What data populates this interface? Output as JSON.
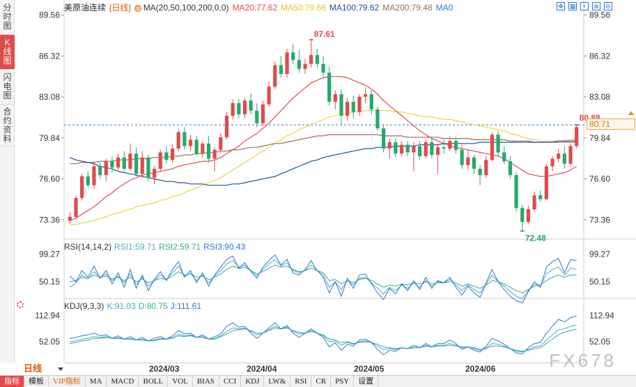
{
  "left_tabs": [
    {
      "label": "分时图",
      "chars": [
        "分",
        "时",
        "图"
      ],
      "active": false
    },
    {
      "label": "K线图",
      "chars": [
        "K",
        "线",
        "图"
      ],
      "active": true
    },
    {
      "label": "闪电图",
      "chars": [
        "闪",
        "电",
        "图"
      ],
      "active": false
    },
    {
      "label": "合约资料",
      "chars": [
        "合",
        "约",
        "资",
        "料"
      ],
      "active": false
    }
  ],
  "legend": {
    "title": "美原油连续",
    "period": "[日线]",
    "settings_icon": "settings-icon",
    "ma_params": "MA(20,50,100,200,0,0)",
    "ma20": "MA20:77.62",
    "ma50": "MA50:79.66",
    "ma100": "MA100:79.62",
    "ma200": "MA200:79.48",
    "ma0": "MA0"
  },
  "colors": {
    "up": "#e24a4a",
    "down": "#26a96c",
    "ma20": "#e24a4a",
    "ma50": "#f0d040",
    "ma100": "#1f4e9c",
    "ma200": "#a06a55",
    "ref_line": "#2a7ad1",
    "rsi1": "#4aa8c8",
    "rsi2": "#3aa890",
    "rsi3": "#2a7ad1",
    "k": "#4aa8c8",
    "d": "#3aa890",
    "j": "#2a7ad1"
  },
  "toolbar_icons": [
    "expand-icon",
    "grid-icon",
    "crosshair-icon",
    "zoom-in-icon",
    "zoom-out-icon"
  ],
  "price_axis": [
    "89.56",
    "86.32",
    "83.08",
    "79.84",
    "76.60",
    "73.36"
  ],
  "current_price_tag": "80.71",
  "annotations": {
    "high": "87.61",
    "low": "72.48",
    "last": "80.88"
  },
  "rsi": {
    "params": "RSI(14,14,2)",
    "rsi1": "RSI1:59.71",
    "rsi2": "RSI2:59.71",
    "rsi3": "RSI3:90.43",
    "axis": [
      "99.27",
      "50.15"
    ]
  },
  "kdj": {
    "params": "KDJ(9,3,3)",
    "k": "K:91.03",
    "d": "D:80.75",
    "j": "J:111.61",
    "axis": [
      "112.94",
      "52.05"
    ]
  },
  "period_selector": "日线",
  "date_axis": [
    "2024/03",
    "2024/04",
    "2024/05",
    "2024/06"
  ],
  "bottom_toolbar": [
    "指标",
    "模板",
    "VIP指标",
    "MA",
    "MACD",
    "BOLL",
    "VOL",
    "BIAS",
    "CCI",
    "KDJ",
    "LW&",
    "RSI",
    "CR",
    "PSY",
    "设置"
  ],
  "watermark": "FX678",
  "chart_data": {
    "type": "candlestick",
    "price_range": [
      72.0,
      90.2
    ],
    "candles_ohlc": [
      [
        73.3,
        74.0,
        73.1,
        73.6
      ],
      [
        73.6,
        75.3,
        73.5,
        75.1
      ],
      [
        75.1,
        77.0,
        74.9,
        76.8
      ],
      [
        76.8,
        77.2,
        75.9,
        76.1
      ],
      [
        76.1,
        78.0,
        75.8,
        77.6
      ],
      [
        77.6,
        77.9,
        76.6,
        76.9
      ],
      [
        76.9,
        78.2,
        76.4,
        78.0
      ],
      [
        78.0,
        78.4,
        77.1,
        77.5
      ],
      [
        77.5,
        78.6,
        77.3,
        78.3
      ],
      [
        78.3,
        78.8,
        77.2,
        77.4
      ],
      [
        77.4,
        79.4,
        77.2,
        78.6
      ],
      [
        78.6,
        79.1,
        76.8,
        77.0
      ],
      [
        77.0,
        78.8,
        76.7,
        78.3
      ],
      [
        78.3,
        78.5,
        76.4,
        76.7
      ],
      [
        76.7,
        77.6,
        76.2,
        77.4
      ],
      [
        77.4,
        78.9,
        77.2,
        78.7
      ],
      [
        78.7,
        79.2,
        77.8,
        78.1
      ],
      [
        78.1,
        79.3,
        77.9,
        79.0
      ],
      [
        79.0,
        80.5,
        78.8,
        80.3
      ],
      [
        80.3,
        80.7,
        78.9,
        79.2
      ],
      [
        79.2,
        80.1,
        78.8,
        79.7
      ],
      [
        79.7,
        80.0,
        78.4,
        78.6
      ],
      [
        78.6,
        79.6,
        78.3,
        79.4
      ],
      [
        79.4,
        80.0,
        77.9,
        78.2
      ],
      [
        78.2,
        79.1,
        77.2,
        78.9
      ],
      [
        78.9,
        80.2,
        78.6,
        79.9
      ],
      [
        79.9,
        81.9,
        79.7,
        81.6
      ],
      [
        81.6,
        82.9,
        81.3,
        82.6
      ],
      [
        82.6,
        82.9,
        81.4,
        81.7
      ],
      [
        81.7,
        83.0,
        81.4,
        82.8
      ],
      [
        82.8,
        83.4,
        81.7,
        82.0
      ],
      [
        82.0,
        82.6,
        80.7,
        81.0
      ],
      [
        81.0,
        82.8,
        80.8,
        82.5
      ],
      [
        82.5,
        84.3,
        82.3,
        83.9
      ],
      [
        83.9,
        85.9,
        83.7,
        85.6
      ],
      [
        85.6,
        86.3,
        84.6,
        84.9
      ],
      [
        84.9,
        86.9,
        84.6,
        86.6
      ],
      [
        86.6,
        87.3,
        85.7,
        86.0
      ],
      [
        86.0,
        86.8,
        85.0,
        85.3
      ],
      [
        85.3,
        86.1,
        84.9,
        85.7
      ],
      [
        85.7,
        87.6,
        85.4,
        86.4
      ],
      [
        86.4,
        86.9,
        85.4,
        85.7
      ],
      [
        85.7,
        86.3,
        84.7,
        85.0
      ],
      [
        85.0,
        85.5,
        82.4,
        82.7
      ],
      [
        82.7,
        83.6,
        82.1,
        83.3
      ],
      [
        83.3,
        83.7,
        80.9,
        81.6
      ],
      [
        81.6,
        83.0,
        81.2,
        82.7
      ],
      [
        82.7,
        83.2,
        81.4,
        81.9
      ],
      [
        81.9,
        83.3,
        81.6,
        83.1
      ],
      [
        83.1,
        83.8,
        82.6,
        83.3
      ],
      [
        83.3,
        83.6,
        81.7,
        82.1
      ],
      [
        82.1,
        82.3,
        80.4,
        80.6
      ],
      [
        80.6,
        80.9,
        78.7,
        79.0
      ],
      [
        79.0,
        79.8,
        78.2,
        79.5
      ],
      [
        79.5,
        79.8,
        78.3,
        78.6
      ],
      [
        78.6,
        79.6,
        78.4,
        79.3
      ],
      [
        79.3,
        79.6,
        78.4,
        78.7
      ],
      [
        78.7,
        79.5,
        77.2,
        79.2
      ],
      [
        79.2,
        79.6,
        78.1,
        78.4
      ],
      [
        78.4,
        79.7,
        78.2,
        79.5
      ],
      [
        79.5,
        79.8,
        78.2,
        78.5
      ],
      [
        78.5,
        79.4,
        77.0,
        79.1
      ],
      [
        79.1,
        79.7,
        78.6,
        79.0
      ],
      [
        79.0,
        80.0,
        78.8,
        79.6
      ],
      [
        79.6,
        79.9,
        78.6,
        78.9
      ],
      [
        78.9,
        79.3,
        77.4,
        77.7
      ],
      [
        77.7,
        78.9,
        77.3,
        78.3
      ],
      [
        78.3,
        78.5,
        77.0,
        77.4
      ],
      [
        77.4,
        77.7,
        76.1,
        76.9
      ],
      [
        76.9,
        78.4,
        76.7,
        78.1
      ],
      [
        78.1,
        80.3,
        78.0,
        80.1
      ],
      [
        80.1,
        80.4,
        78.4,
        78.7
      ],
      [
        78.7,
        79.2,
        77.8,
        78.0
      ],
      [
        78.0,
        78.4,
        76.6,
        76.9
      ],
      [
        76.9,
        77.1,
        74.0,
        74.3
      ],
      [
        74.3,
        74.6,
        72.5,
        73.2
      ],
      [
        73.2,
        74.5,
        73.0,
        74.2
      ],
      [
        74.2,
        75.6,
        74.0,
        75.3
      ],
      [
        75.3,
        75.7,
        74.8,
        75.0
      ],
      [
        75.0,
        77.8,
        74.9,
        77.6
      ],
      [
        77.6,
        78.4,
        77.2,
        78.2
      ],
      [
        78.2,
        79.0,
        77.9,
        78.6
      ],
      [
        78.6,
        79.2,
        77.4,
        77.8
      ],
      [
        77.8,
        79.4,
        77.6,
        79.2
      ],
      [
        79.2,
        80.9,
        79.0,
        80.7
      ]
    ],
    "ma20": [
      73.3,
      73.5,
      73.8,
      74.1,
      74.4,
      74.8,
      75.2,
      75.5,
      75.9,
      76.2,
      76.5,
      76.7,
      76.9,
      77.0,
      77.1,
      77.2,
      77.3,
      77.4,
      77.6,
      77.7,
      77.8,
      77.9,
      78.0,
      78.0,
      78.1,
      78.3,
      78.6,
      78.9,
      79.2,
      79.6,
      79.9,
      80.2,
      80.6,
      81.0,
      81.5,
      82.0,
      82.5,
      83.0,
      83.4,
      83.8,
      84.2,
      84.4,
      84.6,
      84.7,
      84.7,
      84.7,
      84.6,
      84.4,
      84.2,
      84.0,
      83.7,
      83.3,
      82.8,
      82.4,
      82.0,
      81.6,
      81.2,
      80.8,
      80.4,
      80.1,
      79.8,
      79.6,
      79.4,
      79.2,
      79.1,
      79.0,
      78.9,
      78.8,
      78.7,
      78.6,
      78.5,
      78.4,
      78.2,
      77.9,
      77.6,
      77.3,
      77.0,
      76.9,
      76.8,
      76.8,
      76.9,
      77.0,
      77.1,
      77.3,
      77.6
    ],
    "ma50": [
      73.0,
      73.0,
      73.1,
      73.2,
      73.3,
      73.5,
      73.6,
      73.8,
      73.9,
      74.1,
      74.2,
      74.4,
      74.5,
      74.6,
      74.7,
      74.9,
      75.0,
      75.2,
      75.3,
      75.5,
      75.7,
      75.9,
      76.1,
      76.3,
      76.5,
      76.7,
      77.0,
      77.3,
      77.6,
      77.9,
      78.2,
      78.5,
      78.8,
      79.1,
      79.4,
      79.7,
      80.0,
      80.2,
      80.5,
      80.7,
      80.9,
      81.1,
      81.3,
      81.5,
      81.6,
      81.7,
      81.8,
      81.9,
      81.9,
      82.0,
      82.0,
      82.0,
      82.0,
      82.0,
      81.9,
      81.9,
      81.8,
      81.7,
      81.6,
      81.5,
      81.5,
      81.4,
      81.3,
      81.3,
      81.2,
      81.1,
      81.0,
      80.9,
      80.8,
      80.7,
      80.6,
      80.5,
      80.4,
      80.2,
      80.1,
      79.9,
      79.8,
      79.7,
      79.6,
      79.6,
      79.6,
      79.6,
      79.6,
      79.7,
      79.7
    ],
    "ma100": [
      78.3,
      78.1,
      78.0,
      77.9,
      77.8,
      77.6,
      77.5,
      77.4,
      77.2,
      77.1,
      77.0,
      76.9,
      76.8,
      76.7,
      76.6,
      76.5,
      76.4,
      76.4,
      76.3,
      76.3,
      76.2,
      76.2,
      76.2,
      76.1,
      76.1,
      76.1,
      76.1,
      76.2,
      76.2,
      76.3,
      76.4,
      76.5,
      76.6,
      76.7,
      76.8,
      77.0,
      77.2,
      77.4,
      77.6,
      77.8,
      78.0,
      78.1,
      78.3,
      78.4,
      78.5,
      78.6,
      78.7,
      78.8,
      78.9,
      79.0,
      79.0,
      79.1,
      79.1,
      79.1,
      79.2,
      79.2,
      79.2,
      79.2,
      79.3,
      79.3,
      79.3,
      79.3,
      79.4,
      79.4,
      79.4,
      79.4,
      79.4,
      79.4,
      79.5,
      79.5,
      79.5,
      79.5,
      79.5,
      79.5,
      79.5,
      79.5,
      79.5,
      79.5,
      79.5,
      79.5,
      79.5,
      79.6,
      79.6,
      79.6,
      79.6
    ],
    "ma200": [
      77.8,
      77.8,
      77.9,
      77.9,
      77.9,
      78.0,
      78.0,
      78.0,
      78.1,
      78.1,
      78.1,
      78.2,
      78.2,
      78.2,
      78.3,
      78.3,
      78.3,
      78.4,
      78.4,
      78.5,
      78.5,
      78.6,
      78.6,
      78.7,
      78.7,
      78.8,
      78.8,
      78.9,
      78.9,
      79.0,
      79.1,
      79.1,
      79.2,
      79.3,
      79.4,
      79.4,
      79.5,
      79.6,
      79.7,
      79.8,
      79.9,
      80.0,
      80.0,
      80.1,
      80.1,
      80.1,
      80.1,
      80.1,
      80.1,
      80.1,
      80.1,
      80.1,
      80.0,
      80.0,
      80.0,
      80.0,
      79.9,
      79.9,
      79.9,
      79.9,
      79.9,
      79.9,
      79.8,
      79.8,
      79.8,
      79.8,
      79.8,
      79.7,
      79.7,
      79.7,
      79.7,
      79.7,
      79.7,
      79.6,
      79.6,
      79.6,
      79.6,
      79.5,
      79.5,
      79.5,
      79.5,
      79.5,
      79.5,
      79.5,
      79.5
    ],
    "high_marker": {
      "index": 40,
      "value": 87.61
    },
    "low_marker": {
      "index": 75,
      "value": 72.48
    },
    "last_marker": {
      "index": 84,
      "value": 80.88
    },
    "reference_price": 80.71,
    "rsi_range": [
      20,
      110
    ],
    "rsi1": [
      40,
      48,
      62,
      55,
      68,
      58,
      64,
      52,
      60,
      48,
      64,
      45,
      58,
      42,
      52,
      62,
      54,
      66,
      78,
      60,
      65,
      52,
      62,
      48,
      60,
      70,
      82,
      88,
      76,
      80,
      70,
      60,
      72,
      82,
      90,
      78,
      84,
      70,
      66,
      70,
      80,
      70,
      62,
      40,
      50,
      36,
      52,
      44,
      56,
      58,
      48,
      38,
      28,
      40,
      34,
      44,
      38,
      48,
      40,
      52,
      42,
      50,
      48,
      54,
      44,
      34,
      44,
      36,
      30,
      46,
      62,
      50,
      42,
      32,
      24,
      20,
      34,
      46,
      42,
      64,
      72,
      76,
      62,
      74,
      72
    ],
    "rsi2": [
      50,
      52,
      58,
      56,
      62,
      58,
      60,
      55,
      58,
      52,
      58,
      50,
      55,
      48,
      52,
      56,
      54,
      60,
      68,
      62,
      64,
      58,
      60,
      54,
      58,
      64,
      72,
      78,
      74,
      76,
      70,
      64,
      68,
      74,
      80,
      76,
      78,
      72,
      68,
      70,
      74,
      70,
      66,
      52,
      54,
      46,
      52,
      48,
      54,
      56,
      52,
      46,
      40,
      44,
      42,
      46,
      44,
      48,
      46,
      50,
      46,
      48,
      48,
      50,
      48,
      42,
      46,
      42,
      38,
      44,
      52,
      50,
      46,
      40,
      34,
      30,
      36,
      42,
      44,
      52,
      58,
      62,
      58,
      62,
      62
    ],
    "rsi3": [
      60,
      50,
      70,
      58,
      78,
      56,
      70,
      46,
      66,
      40,
      72,
      38,
      62,
      34,
      54,
      68,
      52,
      72,
      86,
      58,
      70,
      48,
      66,
      42,
      62,
      76,
      90,
      96,
      74,
      84,
      68,
      56,
      76,
      88,
      98,
      80,
      90,
      66,
      62,
      72,
      88,
      70,
      58,
      30,
      50,
      24,
      56,
      38,
      62,
      64,
      46,
      30,
      18,
      38,
      28,
      46,
      34,
      52,
      36,
      58,
      38,
      52,
      48,
      58,
      40,
      26,
      42,
      30,
      22,
      48,
      72,
      50,
      36,
      24,
      16,
      12,
      32,
      50,
      40,
      76,
      86,
      92,
      66,
      90,
      88
    ],
    "kdj_range": [
      10,
      130
    ],
    "k": [
      52,
      54,
      58,
      60,
      64,
      62,
      64,
      60,
      62,
      58,
      60,
      56,
      58,
      54,
      56,
      60,
      58,
      62,
      70,
      66,
      68,
      62,
      64,
      58,
      60,
      66,
      76,
      84,
      82,
      84,
      76,
      68,
      72,
      80,
      88,
      82,
      86,
      76,
      70,
      72,
      78,
      72,
      66,
      52,
      54,
      44,
      50,
      46,
      52,
      54,
      50,
      42,
      34,
      36,
      34,
      38,
      36,
      40,
      38,
      44,
      40,
      44,
      44,
      48,
      44,
      38,
      40,
      36,
      32,
      38,
      48,
      46,
      42,
      36,
      30,
      28,
      34,
      40,
      42,
      56,
      68,
      80,
      82,
      88,
      91
    ],
    "d": [
      48,
      50,
      54,
      56,
      60,
      60,
      62,
      60,
      60,
      58,
      58,
      56,
      56,
      54,
      54,
      58,
      58,
      60,
      66,
      64,
      66,
      62,
      62,
      58,
      58,
      64,
      70,
      78,
      80,
      82,
      78,
      72,
      72,
      78,
      84,
      82,
      84,
      78,
      74,
      72,
      76,
      72,
      68,
      58,
      56,
      50,
      52,
      48,
      50,
      52,
      50,
      46,
      40,
      38,
      36,
      38,
      36,
      38,
      38,
      42,
      40,
      42,
      42,
      44,
      42,
      40,
      40,
      38,
      34,
      36,
      42,
      42,
      40,
      36,
      32,
      30,
      32,
      36,
      38,
      48,
      58,
      68,
      74,
      78,
      81
    ],
    "j": [
      60,
      62,
      66,
      68,
      72,
      66,
      68,
      60,
      66,
      58,
      64,
      56,
      62,
      54,
      60,
      64,
      58,
      66,
      78,
      70,
      72,
      62,
      68,
      58,
      64,
      70,
      88,
      96,
      86,
      88,
      72,
      60,
      72,
      84,
      96,
      82,
      90,
      72,
      62,
      72,
      82,
      72,
      62,
      40,
      50,
      32,
      46,
      42,
      56,
      58,
      50,
      34,
      22,
      32,
      30,
      38,
      36,
      44,
      38,
      48,
      40,
      48,
      48,
      56,
      48,
      34,
      40,
      32,
      28,
      42,
      60,
      54,
      46,
      36,
      26,
      24,
      38,
      48,
      50,
      72,
      88,
      104,
      98,
      108,
      112
    ]
  }
}
